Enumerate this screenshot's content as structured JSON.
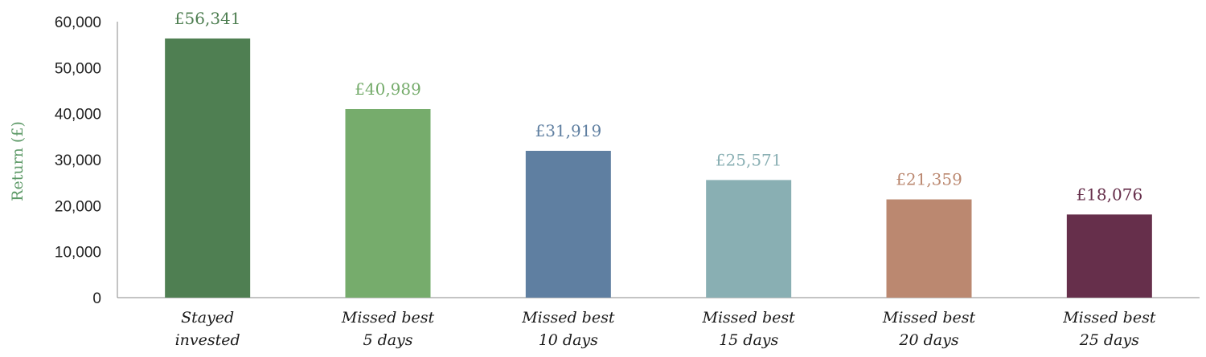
{
  "chart_data": {
    "type": "bar",
    "title": "",
    "xlabel": "",
    "ylabel": "Return (£)",
    "ylim": [
      0,
      60000
    ],
    "yticks": [
      0,
      10000,
      20000,
      30000,
      40000,
      50000,
      60000
    ],
    "ytick_labels": [
      "0",
      "10,000",
      "20,000",
      "30,000",
      "40,000",
      "50,000",
      "60,000"
    ],
    "grid": false,
    "categories": [
      [
        "Stayed",
        "invested"
      ],
      [
        "Missed best",
        "5 days"
      ],
      [
        "Missed best",
        "10 days"
      ],
      [
        "Missed best",
        "15 days"
      ],
      [
        "Missed best",
        "20 days"
      ],
      [
        "Missed best",
        "25 days"
      ]
    ],
    "values": [
      56341,
      40989,
      31919,
      25571,
      21359,
      18076
    ],
    "data_labels": [
      "£56,341",
      "£40,989",
      "£31,919",
      "£25,571",
      "£21,359",
      "£18,076"
    ],
    "colors": [
      "#4f7f52",
      "#76ac6c",
      "#5f7fa1",
      "#89afb3",
      "#bb8870",
      "#662f4b"
    ],
    "ylabel_color": "#5e9a68",
    "axis_color": "#888888"
  }
}
